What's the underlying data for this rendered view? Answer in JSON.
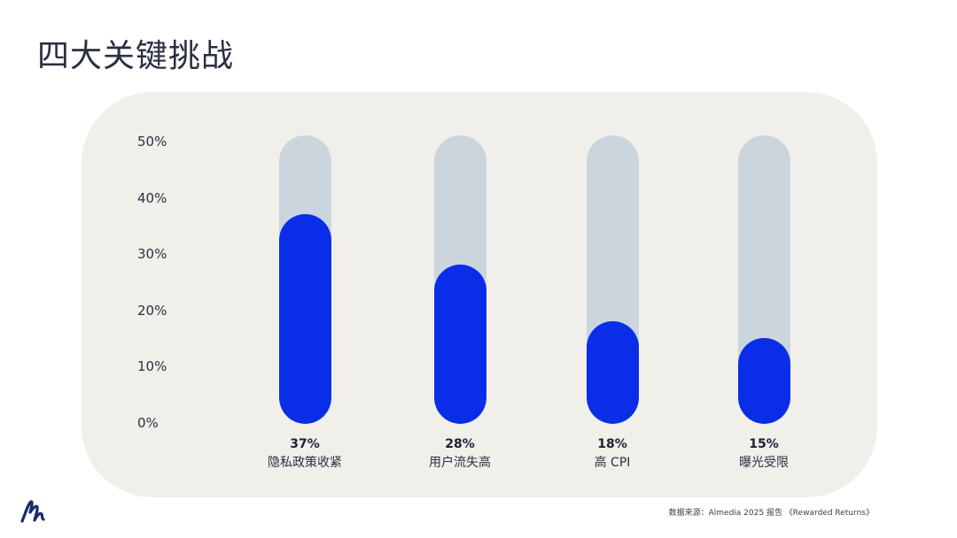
{
  "title": "四大关键挑战",
  "source": "数据来源：Almedia 2025 报告 《Rewarded Returns》",
  "colors": {
    "fill": "#0a2ee8",
    "track": "#cbd5de",
    "panel": "#f0efea"
  },
  "logo_icon": "almedia-logo",
  "chart_data": {
    "type": "bar",
    "categories": [
      "隐私政策收紧",
      "用户流失高",
      "高 CPI",
      "曝光受限"
    ],
    "values": [
      37,
      28,
      18,
      15
    ],
    "value_labels": [
      "37%",
      "28%",
      "18%",
      "15%"
    ],
    "y_ticks": [
      "0%",
      "10%",
      "20%",
      "30%",
      "40%",
      "50%"
    ],
    "ylim": [
      0,
      50
    ],
    "grid": false
  }
}
